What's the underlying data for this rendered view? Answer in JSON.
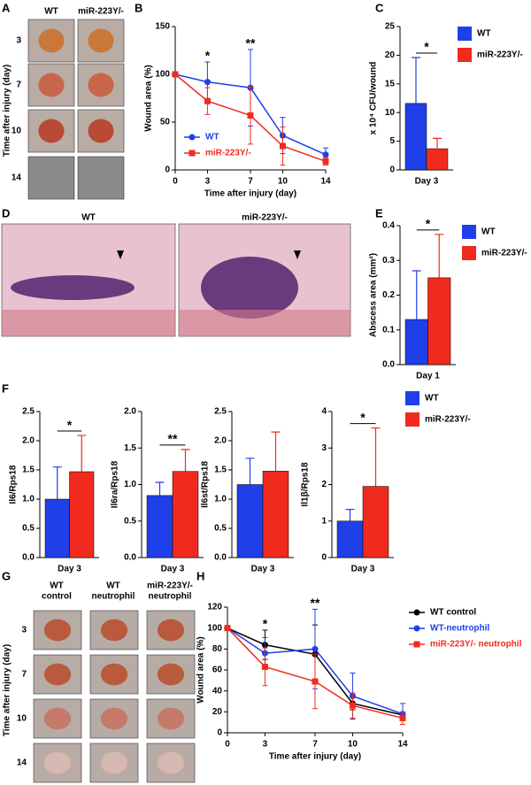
{
  "panel_labels": [
    "A",
    "B",
    "C",
    "D",
    "E",
    "F",
    "G",
    "H"
  ],
  "photos": {
    "A": {
      "columns": [
        "WT",
        "miR-223Y/-"
      ],
      "rows": [
        "3",
        "7",
        "10",
        "14"
      ],
      "axis_label": "Time after injury (day)"
    },
    "D": {
      "columns": [
        "WT",
        "miR-223Y/-"
      ]
    },
    "G": {
      "columns": [
        [
          "WT",
          "control"
        ],
        [
          "WT",
          "neutrophil"
        ],
        [
          "miR-223Y/-",
          "neutrophil"
        ]
      ],
      "rows": [
        "3",
        "7",
        "10",
        "14"
      ],
      "axis_label": "Time after injury (day)"
    }
  },
  "chart_data": [
    {
      "type": "line",
      "x_label": "Time after injury (day)",
      "y_label": "Wound area (%)",
      "x": [
        0,
        3,
        7,
        10,
        14
      ],
      "xlim": [
        0,
        14
      ],
      "xticks": [
        0,
        3,
        7,
        10,
        14
      ],
      "ylim": [
        0,
        150
      ],
      "yticks": [
        0,
        50,
        100,
        150
      ],
      "legend": "lower left",
      "series": [
        {
          "name": "WT",
          "color": "#1f3fe8",
          "marker": "circle",
          "values": [
            100,
            92,
            86,
            36,
            16
          ],
          "errors": [
            0,
            21,
            40,
            19,
            7
          ]
        },
        {
          "name": "miR-223Y/-",
          "color": "#f02a1e",
          "marker": "square",
          "values": [
            100,
            72,
            57,
            25,
            9
          ],
          "errors": [
            0,
            14,
            30,
            20,
            4
          ]
        }
      ],
      "annotations": [
        {
          "text": "*",
          "x": 3
        },
        {
          "text": "**",
          "x": 7
        }
      ]
    },
    {
      "type": "bar",
      "y_label": "x 10⁴ CFU/wound",
      "categories": [
        "Day 3"
      ],
      "ylim": [
        0,
        25
      ],
      "yticks": [
        0,
        5,
        10,
        15,
        20,
        25
      ],
      "legend": "right",
      "series": [
        {
          "name": "WT",
          "color": "#1f3fe8",
          "values": [
            11.6
          ],
          "errors": [
            8
          ]
        },
        {
          "name": "miR-223Y/-",
          "color": "#f02a1e",
          "values": [
            3.7
          ],
          "errors": [
            1.8
          ]
        }
      ],
      "annotations": [
        "*"
      ]
    },
    {
      "type": "bar",
      "y_label": "Abscess area (mm²)",
      "categories": [
        "Day 1"
      ],
      "ylim": [
        0,
        0.4
      ],
      "yticks": [
        {
          "value": 0,
          "label": "0.0"
        },
        0.1,
        0.2,
        0.3,
        0.4
      ],
      "legend": "right",
      "series": [
        {
          "name": "WT",
          "color": "#1f3fe8",
          "values": [
            0.13
          ],
          "errors": [
            0.14
          ]
        },
        {
          "name": "miR-223Y/-",
          "color": "#f02a1e",
          "values": [
            0.25
          ],
          "errors": [
            0.125
          ]
        }
      ],
      "annotations": [
        "*"
      ]
    },
    {
      "type": "bar",
      "y_label": "Il6/Rps18",
      "categories": [
        "Day 3"
      ],
      "ylim": [
        0,
        2.5
      ],
      "yticks": [
        {
          "value": 0,
          "label": "0.0"
        },
        0.5,
        {
          "value": 1,
          "label": "1.0"
        },
        1.5,
        {
          "value": 2,
          "label": "2.0"
        },
        2.5
      ],
      "series": [
        {
          "color": "#1f3fe8",
          "values": [
            1.0
          ],
          "errors": [
            0.55
          ]
        },
        {
          "color": "#f02a1e",
          "values": [
            1.47
          ],
          "errors": [
            0.62
          ]
        }
      ],
      "annotations": [
        "*"
      ]
    },
    {
      "type": "bar",
      "y_label": "Il6ra/Rps18",
      "categories": [
        "Day 3"
      ],
      "ylim": [
        0,
        2.0
      ],
      "yticks": [
        {
          "value": 0,
          "label": "0.0"
        },
        0.5,
        {
          "value": 1,
          "label": "1.0"
        },
        1.5,
        {
          "value": 2,
          "label": "2.0"
        }
      ],
      "series": [
        {
          "color": "#1f3fe8",
          "values": [
            0.85
          ],
          "errors": [
            0.18
          ]
        },
        {
          "color": "#f02a1e",
          "values": [
            1.18
          ],
          "errors": [
            0.3
          ]
        }
      ],
      "annotations": [
        "**"
      ]
    },
    {
      "type": "bar",
      "y_label": "Il6st/Rps18",
      "categories": [
        "Day 3"
      ],
      "ylim": [
        0,
        2.5
      ],
      "yticks": [
        {
          "value": 0,
          "label": "0.0"
        },
        0.5,
        {
          "value": 1,
          "label": "1.0"
        },
        1.5,
        {
          "value": 2,
          "label": "2.0"
        },
        2.5
      ],
      "series": [
        {
          "color": "#1f3fe8",
          "values": [
            1.25
          ],
          "errors": [
            0.45
          ]
        },
        {
          "color": "#f02a1e",
          "values": [
            1.48
          ],
          "errors": [
            0.67
          ]
        }
      ]
    },
    {
      "type": "bar",
      "y_label": "Il1β/Rps18",
      "categories": [
        "Day 3"
      ],
      "ylim": [
        0,
        4
      ],
      "yticks": [
        0,
        1,
        2,
        3,
        4
      ],
      "legend": "right",
      "series": [
        {
          "name": "WT",
          "color": "#1f3fe8",
          "values": [
            1.0
          ],
          "errors": [
            0.32
          ]
        },
        {
          "name": "miR-223Y/-",
          "color": "#f02a1e",
          "values": [
            1.95
          ],
          "errors": [
            1.6
          ]
        }
      ],
      "annotations": [
        "*"
      ]
    },
    {
      "type": "line",
      "x_label": "Time after injury (day)",
      "y_label": "Wound area (%)",
      "x": [
        0,
        3,
        7,
        10,
        14
      ],
      "xlim": [
        0,
        14
      ],
      "xticks": [
        0,
        3,
        7,
        10,
        14
      ],
      "ylim": [
        0,
        120
      ],
      "yticks": [
        0,
        20,
        40,
        60,
        80,
        100,
        120
      ],
      "legend": "right",
      "series": [
        {
          "name": "WT control",
          "color": "#000000",
          "marker": "circle",
          "values": [
            100,
            84,
            75,
            28,
            17
          ],
          "errors": [
            0,
            14,
            28,
            6,
            3
          ]
        },
        {
          "name": "WT-neutrophil",
          "color": "#1f3fe8",
          "marker": "circle",
          "values": [
            100,
            76,
            80,
            35,
            18
          ],
          "errors": [
            0,
            15,
            38,
            22,
            10
          ]
        },
        {
          "name": "miR-223Y/- neutrophil",
          "color": "#f02a1e",
          "marker": "square",
          "values": [
            100,
            63,
            49,
            26,
            14
          ],
          "errors": [
            0,
            18,
            26,
            12,
            6
          ]
        }
      ],
      "annotations": [
        {
          "text": "*",
          "x": 3
        },
        {
          "text": "**",
          "x": 7
        }
      ]
    }
  ]
}
